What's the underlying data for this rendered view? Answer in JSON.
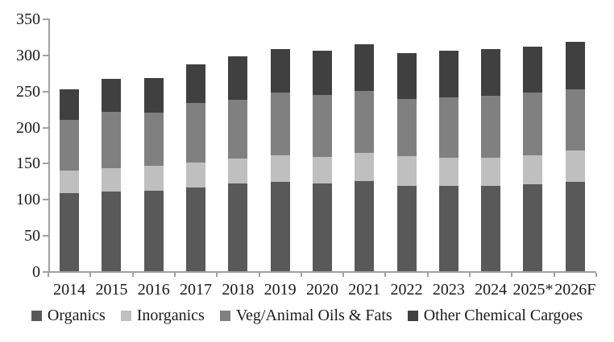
{
  "chart_data": {
    "type": "bar",
    "stacked": true,
    "categories": [
      "2014",
      "2015",
      "2016",
      "2017",
      "2018",
      "2019",
      "2020",
      "2021",
      "2022",
      "2023",
      "2024",
      "2025*",
      "2026F"
    ],
    "series": [
      {
        "name": "Organics",
        "color": "#595959",
        "values": [
          108,
          110,
          112,
          116,
          121,
          124,
          122,
          125,
          118,
          118,
          118,
          120,
          124
        ]
      },
      {
        "name": "Inorganics",
        "color": "#bfbfbf",
        "values": [
          31,
          33,
          34,
          34,
          35,
          37,
          36,
          39,
          41,
          39,
          39,
          41,
          43
        ]
      },
      {
        "name": "Veg/Animal Oils & Fats",
        "color": "#808080",
        "values": [
          71,
          78,
          74,
          83,
          81,
          86,
          86,
          86,
          80,
          84,
          86,
          87,
          85
        ]
      },
      {
        "name": "Other Chemical Cargoes",
        "color": "#404040",
        "values": [
          42,
          45,
          48,
          54,
          61,
          61,
          61,
          64,
          63,
          64,
          65,
          63,
          66
        ]
      }
    ],
    "totals": [
      252,
      266,
      268,
      287,
      298,
      308,
      305,
      314,
      302,
      305,
      308,
      311,
      318
    ],
    "ylim": [
      0,
      350
    ],
    "ytick_step": 50,
    "yticks": [
      0,
      50,
      100,
      150,
      200,
      250,
      300,
      350
    ],
    "grid": false,
    "legend_position": "bottom",
    "axis_color": "#a0a0a0",
    "text_color": "#1a1a1a"
  }
}
